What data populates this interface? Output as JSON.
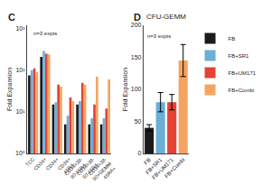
{
  "chart_data": [
    {
      "type": "bar",
      "annotations": [
        "C"
      ],
      "subtitle": "n=3 expts",
      "categories": [
        "TCC",
        "CD34+",
        "CD34+",
        "CD34+\n45RA-",
        "CD34+38-\n90-45RA-",
        "CD34+38-\n90-45RA-",
        "CD34+38-\n90+GEMM\n45RA+"
      ],
      "series": [
        {
          "name": "FB",
          "color": "#1a1a1a",
          "values": [
            75,
            210,
            15,
            5,
            15,
            5,
            5
          ]
        },
        {
          "name": "FB+SR1",
          "color": "#6baed6",
          "values": [
            100,
            290,
            17,
            8,
            18,
            7,
            7
          ]
        },
        {
          "name": "FB+UM171",
          "color": "#e34234",
          "values": [
            110,
            250,
            45,
            22,
            50,
            15,
            12
          ]
        },
        {
          "name": "FB+Combi",
          "color": "#f4a460",
          "values": [
            90,
            240,
            40,
            18,
            45,
            70,
            60
          ]
        }
      ],
      "ylabel": "Fold Expansion",
      "log": "y",
      "ylim": [
        1,
        1200
      ],
      "yticks": [
        {
          "value": 1,
          "label": "10⁰"
        },
        {
          "value": 10,
          "label": "10¹"
        },
        {
          "value": 100,
          "label": "10²"
        },
        {
          "value": 1000,
          "label": "10³"
        }
      ],
      "grid": false,
      "legend": "upper right"
    },
    {
      "type": "bar",
      "title": "CFU-GEMM",
      "annotations": [
        "D"
      ],
      "subtitle": "n=3 expts",
      "categories": [
        "FB",
        "FB+SR1",
        "FB+UM171",
        "FB+Combi"
      ],
      "values": [
        40,
        80,
        80,
        145
      ],
      "errors": [
        5,
        15,
        12,
        25
      ],
      "colors": [
        "#1a1a1a",
        "#6baed6",
        "#e34234",
        "#f4a460"
      ],
      "ylabel": "Fold Expansion",
      "ylim": [
        0,
        200
      ],
      "yticks": [
        0,
        50,
        100,
        150,
        200
      ],
      "grid": false
    }
  ]
}
